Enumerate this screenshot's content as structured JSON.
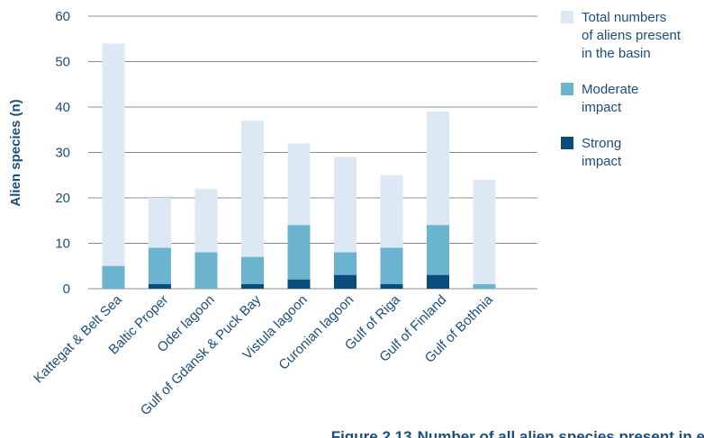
{
  "chart_data": {
    "type": "bar",
    "stacked": true,
    "ylabel": "Alien species (n)",
    "xlabel": "",
    "ylim": [
      0,
      60
    ],
    "yticks": [
      0,
      10,
      20,
      30,
      40,
      50,
      60
    ],
    "grid": true,
    "legend_position": "right",
    "categories": [
      "Kattegat & Belt Sea",
      "Baltic Proper",
      "Oder lagoon",
      "Gulf of Gdansk & Puck Bay",
      "Vistula lagoon",
      "Curonian lagoon",
      "Gulf of Riga",
      "Gulf of Finland",
      "Gulf of Bothnia"
    ],
    "series": [
      {
        "name": "Total numbers of aliens present in the basin",
        "values": [
          54,
          20,
          22,
          37,
          32,
          29,
          25,
          39,
          24
        ],
        "color": "#dce8f4"
      },
      {
        "name": "Moderate impact",
        "values": [
          5,
          9,
          8,
          7,
          14,
          8,
          9,
          14,
          1
        ],
        "color": "#6ab4cf"
      },
      {
        "name": "Strong impact",
        "values": [
          0,
          1,
          0,
          1,
          2,
          3,
          1,
          3,
          0
        ],
        "color": "#0a4d7c"
      }
    ],
    "legend": [
      {
        "lines": [
          "Total numbers",
          "of aliens present",
          "in the basin"
        ],
        "color": "#dce8f4"
      },
      {
        "lines": [
          "Moderate",
          "impact"
        ],
        "color": "#6ab4cf"
      },
      {
        "lines": [
          "Strong",
          "impact"
        ],
        "color": "#0a4d7c"
      }
    ]
  },
  "caption": {
    "label": "Figure 2.13",
    "text": "Number of all alien species present in each"
  },
  "colors": {
    "text": "#1b4e80",
    "grid": "#8c8c8c"
  }
}
